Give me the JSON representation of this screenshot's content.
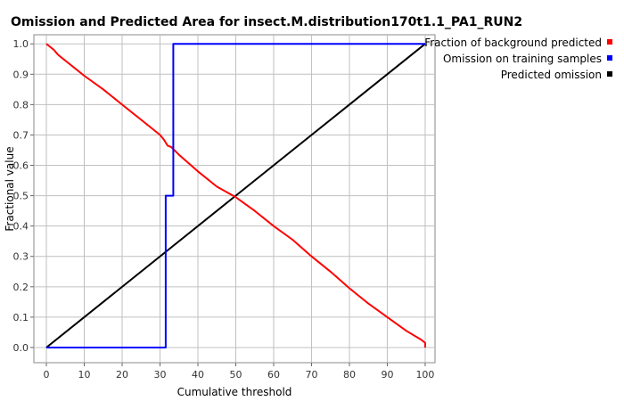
{
  "chart_data": {
    "type": "line",
    "title": "Omission and Predicted Area for insect.M.distribution170t1.1_PA1_RUN2",
    "xlabel": "Cumulative threshold",
    "ylabel": "Fractional value",
    "xlim": [
      -3.3,
      102.6
    ],
    "ylim": [
      -0.05,
      1.03
    ],
    "xticks": [
      0,
      10,
      20,
      30,
      40,
      50,
      60,
      70,
      80,
      90,
      100
    ],
    "yticks": [
      0.0,
      0.1,
      0.2,
      0.3,
      0.4,
      0.5,
      0.6,
      0.7,
      0.8,
      0.9,
      1.0
    ],
    "xtick_labels": [
      "0",
      "10",
      "20",
      "30",
      "40",
      "50",
      "60",
      "70",
      "80",
      "90",
      "100"
    ],
    "ytick_labels": [
      "0.0",
      "0.1",
      "0.2",
      "0.3",
      "0.4",
      "0.5",
      "0.6",
      "0.7",
      "0.8",
      "0.9",
      "1.0"
    ],
    "grid": true,
    "legend_position": "outside-right-top",
    "series": [
      {
        "name": "Fraction of background predicted",
        "color": "#ff0000",
        "x": [
          0,
          1,
          2,
          3,
          4,
          6,
          8,
          10,
          15,
          20,
          25,
          30,
          31,
          32,
          33,
          35,
          40,
          45,
          50,
          55,
          60,
          65,
          70,
          75,
          80,
          85,
          90,
          95,
          99,
          100,
          100
        ],
        "y": [
          1.0,
          0.99,
          0.98,
          0.965,
          0.955,
          0.935,
          0.915,
          0.895,
          0.85,
          0.8,
          0.75,
          0.7,
          0.685,
          0.665,
          0.66,
          0.635,
          0.58,
          0.53,
          0.495,
          0.45,
          0.4,
          0.355,
          0.3,
          0.25,
          0.195,
          0.145,
          0.1,
          0.055,
          0.025,
          0.015,
          0.0
        ]
      },
      {
        "name": "Omission on training samples",
        "color": "#0000ff",
        "x": [
          0,
          31.5,
          31.5,
          32.5,
          33.0,
          33.5,
          33.5,
          100
        ],
        "y": [
          0.0,
          0.0,
          0.5,
          0.5,
          0.5,
          0.5,
          1.0,
          1.0
        ]
      },
      {
        "name": "Predicted omission",
        "color": "#000000",
        "x": [
          0,
          100
        ],
        "y": [
          0.0,
          1.0
        ]
      }
    ]
  }
}
